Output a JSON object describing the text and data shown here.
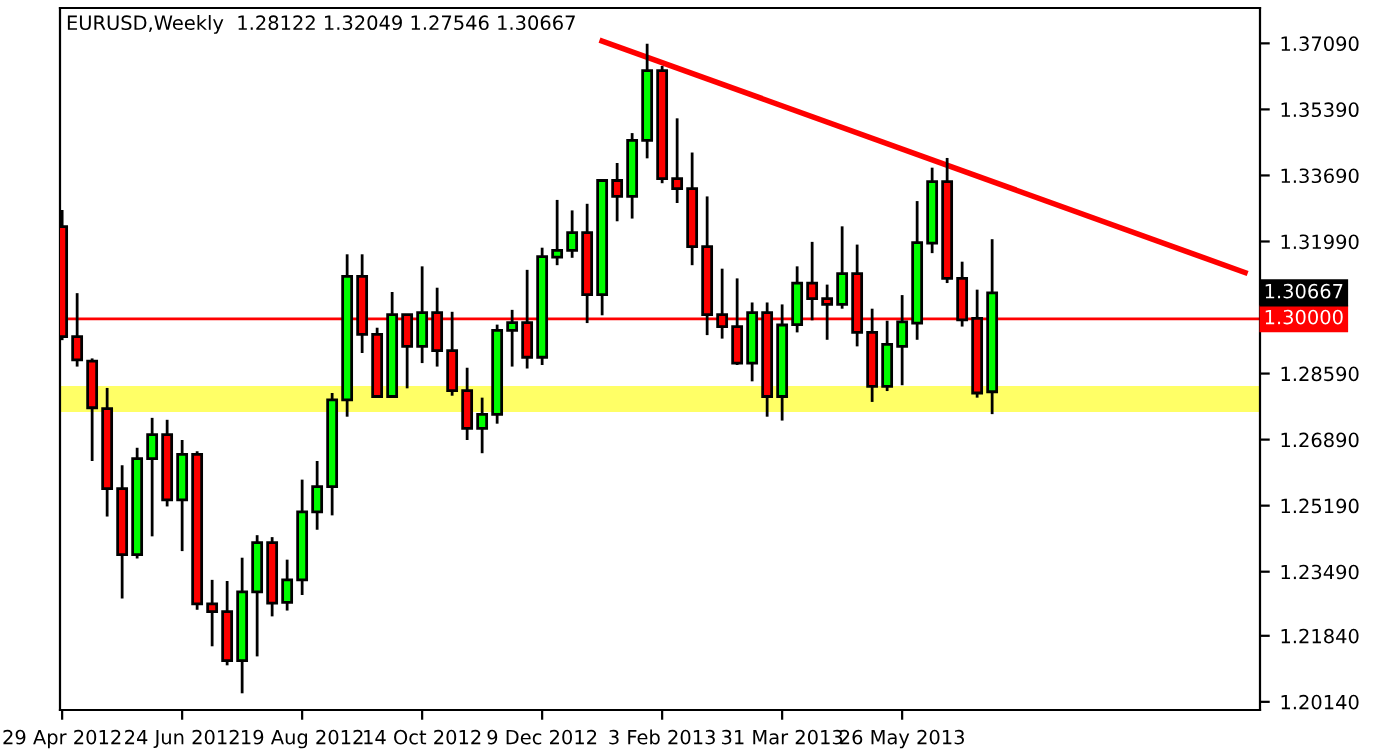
{
  "chart_data": {
    "type": "candlestick",
    "title": "EURUSD,Weekly  1.28122 1.32049 1.27546 1.30667",
    "x": [
      "2012-04-29",
      "2012-05-06",
      "2012-05-13",
      "2012-05-20",
      "2012-05-27",
      "2012-06-03",
      "2012-06-10",
      "2012-06-17",
      "2012-06-24",
      "2012-07-01",
      "2012-07-08",
      "2012-07-15",
      "2012-07-22",
      "2012-07-29",
      "2012-08-05",
      "2012-08-12",
      "2012-08-19",
      "2012-08-26",
      "2012-09-02",
      "2012-09-09",
      "2012-09-16",
      "2012-09-23",
      "2012-09-30",
      "2012-10-07",
      "2012-10-14",
      "2012-10-21",
      "2012-10-28",
      "2012-11-04",
      "2012-11-11",
      "2012-11-18",
      "2012-11-25",
      "2012-12-02",
      "2012-12-09",
      "2012-12-16",
      "2012-12-23",
      "2012-12-30",
      "2013-01-06",
      "2013-01-13",
      "2013-01-20",
      "2013-01-27",
      "2013-02-03",
      "2013-02-10",
      "2013-02-17",
      "2013-02-24",
      "2013-03-03",
      "2013-03-10",
      "2013-03-17",
      "2013-03-24",
      "2013-03-31",
      "2013-04-07",
      "2013-04-14",
      "2013-04-21",
      "2013-04-28",
      "2013-05-05",
      "2013-05-12",
      "2013-05-19",
      "2013-05-26",
      "2013-06-02",
      "2013-06-09",
      "2013-06-16",
      "2013-06-23",
      "2013-06-30",
      "2013-07-07"
    ],
    "ohlc": [
      [
        1.3237,
        1.328,
        1.2945,
        1.2954
      ],
      [
        1.2954,
        1.3066,
        1.2877,
        1.2894
      ],
      [
        1.2891,
        1.2898,
        1.2634,
        1.2771
      ],
      [
        1.2769,
        1.2822,
        1.2491,
        1.2563
      ],
      [
        1.2563,
        1.2623,
        1.228,
        1.2393
      ],
      [
        1.2393,
        1.2668,
        1.2383,
        1.264
      ],
      [
        1.264,
        1.2745,
        1.244,
        1.2702
      ],
      [
        1.2702,
        1.274,
        1.2517,
        1.2534
      ],
      [
        1.2534,
        1.2688,
        1.2402,
        1.2651
      ],
      [
        1.2651,
        1.2659,
        1.2251,
        1.2266
      ],
      [
        1.2266,
        1.2328,
        1.2157,
        1.2246
      ],
      [
        1.2246,
        1.2325,
        1.2108,
        1.212
      ],
      [
        1.212,
        1.2385,
        1.2036,
        1.2297
      ],
      [
        1.2297,
        1.2443,
        1.2131,
        1.2424
      ],
      [
        1.2424,
        1.2438,
        1.2234,
        1.2268
      ],
      [
        1.227,
        1.238,
        1.2249,
        1.2328
      ],
      [
        1.2328,
        1.2586,
        1.2289,
        1.2503
      ],
      [
        1.2503,
        1.2634,
        1.2457,
        1.2568
      ],
      [
        1.2568,
        1.2809,
        1.2494,
        1.2791
      ],
      [
        1.2791,
        1.3166,
        1.2748,
        1.3109
      ],
      [
        1.3109,
        1.3166,
        1.2912,
        1.296
      ],
      [
        1.296,
        1.2977,
        1.2797,
        1.28
      ],
      [
        1.28,
        1.3069,
        1.2797,
        1.3011
      ],
      [
        1.3011,
        1.3011,
        1.2821,
        1.2929
      ],
      [
        1.2929,
        1.3135,
        1.2886,
        1.3016
      ],
      [
        1.3016,
        1.308,
        1.2877,
        1.2918
      ],
      [
        1.2918,
        1.3018,
        1.2802,
        1.2815
      ],
      [
        1.2815,
        1.2874,
        1.2688,
        1.2718
      ],
      [
        1.2718,
        1.2797,
        1.2654,
        1.2754
      ],
      [
        1.2754,
        1.2985,
        1.273,
        1.297
      ],
      [
        1.297,
        1.3023,
        1.2877,
        1.299
      ],
      [
        1.299,
        1.3126,
        1.2872,
        1.2901
      ],
      [
        1.2901,
        1.3183,
        1.2881,
        1.316
      ],
      [
        1.3159,
        1.3306,
        1.3138,
        1.3176
      ],
      [
        1.3176,
        1.3279,
        1.3157,
        1.3222
      ],
      [
        1.3222,
        1.3296,
        1.2989,
        1.3062
      ],
      [
        1.3062,
        1.3359,
        1.3009,
        1.3356
      ],
      [
        1.3356,
        1.3401,
        1.3251,
        1.3315
      ],
      [
        1.3315,
        1.3478,
        1.3258,
        1.3459
      ],
      [
        1.3459,
        1.3708,
        1.3413,
        1.3639
      ],
      [
        1.3639,
        1.3651,
        1.3349,
        1.3361
      ],
      [
        1.3361,
        1.3516,
        1.3298,
        1.3335
      ],
      [
        1.3335,
        1.3428,
        1.3138,
        1.3186
      ],
      [
        1.3186,
        1.3315,
        1.2958,
        1.3011
      ],
      [
        1.3011,
        1.3129,
        1.2949,
        1.298
      ],
      [
        1.298,
        1.3104,
        1.2881,
        1.2886
      ],
      [
        1.2886,
        1.3042,
        1.2839,
        1.3016
      ],
      [
        1.3016,
        1.3042,
        1.2748,
        1.28
      ],
      [
        1.28,
        1.3037,
        1.2738,
        1.2984
      ],
      [
        1.2985,
        1.3135,
        1.2965,
        1.3092
      ],
      [
        1.3092,
        1.3198,
        1.2996,
        1.3052
      ],
      [
        1.3052,
        1.3088,
        1.2946,
        1.3037
      ],
      [
        1.3037,
        1.3238,
        1.3026,
        1.3116
      ],
      [
        1.3116,
        1.3191,
        1.2929,
        1.2965
      ],
      [
        1.2965,
        1.3026,
        1.2786,
        1.2826
      ],
      [
        1.2826,
        1.2995,
        1.2814,
        1.2934
      ],
      [
        1.2929,
        1.3061,
        1.2829,
        1.2992
      ],
      [
        1.2989,
        1.3303,
        1.2946,
        1.3196
      ],
      [
        1.3195,
        1.3389,
        1.3169,
        1.3353
      ],
      [
        1.3353,
        1.3414,
        1.3092,
        1.3104
      ],
      [
        1.3104,
        1.3147,
        1.298,
        1.2997
      ],
      [
        1.3001,
        1.3075,
        1.2797,
        1.2809
      ],
      [
        1.28122,
        1.32049,
        1.27546,
        1.30667
      ]
    ],
    "colors": [
      "#ff0000",
      "#ff0000",
      "#ff0000",
      "#ff0000",
      "#ff0000",
      "#00ff00",
      "#00ff00",
      "#ff0000",
      "#00ff00",
      "#ff0000",
      "#ff0000",
      "#ff0000",
      "#00ff00",
      "#00ff00",
      "#ff0000",
      "#00ff00",
      "#00ff00",
      "#00ff00",
      "#00ff00",
      "#00ff00",
      "#ff0000",
      "#ff0000",
      "#00ff00",
      "#ff0000",
      "#00ff00",
      "#ff0000",
      "#ff0000",
      "#ff0000",
      "#00ff00",
      "#00ff00",
      "#00ff00",
      "#ff0000",
      "#00ff00",
      "#00ff00",
      "#00ff00",
      "#ff0000",
      "#00ff00",
      "#ff0000",
      "#00ff00",
      "#00ff00",
      "#ff0000",
      "#ff0000",
      "#ff0000",
      "#ff0000",
      "#ff0000",
      "#ff0000",
      "#00ff00",
      "#ff0000",
      "#00ff00",
      "#00ff00",
      "#ff0000",
      "#ff0000",
      "#00ff00",
      "#ff0000",
      "#ff0000",
      "#00ff00",
      "#00ff00",
      "#00ff00",
      "#00ff00",
      "#ff0000",
      "#ff0000",
      "#ff0000",
      "#00ff00"
    ],
    "series": [
      {
        "type": "line",
        "color": "#ff0000",
        "x": [
          "2013-01-06",
          "2013-11-02"
        ],
        "values": [
          1.3715,
          1.3119
        ]
      }
    ],
    "ref_lines": [
      {
        "axis": "y",
        "value": 1.3,
        "label": "1.30000",
        "color": "#ff0000"
      }
    ],
    "bands": [
      {
        "axis": "y",
        "from": 1.276,
        "to": 1.2827,
        "color": "#ffff66"
      }
    ],
    "annotations": [
      "1.30667"
    ],
    "xlim": [
      "2012-04-28",
      "2013-11-09"
    ],
    "xticks": [
      {
        "value": "2012-04-29",
        "label": "29 Apr 2012"
      },
      {
        "value": "2012-06-24",
        "label": "24 Jun 2012"
      },
      {
        "value": "2012-08-19",
        "label": "19 Aug 2012"
      },
      {
        "value": "2012-10-14",
        "label": "14 Oct 2012"
      },
      {
        "value": "2012-12-09",
        "label": "9 Dec 2012"
      },
      {
        "value": "2013-02-03",
        "label": "3 Feb 2013"
      },
      {
        "value": "2013-03-31",
        "label": "31 Mar 2013"
      },
      {
        "value": "2013-05-26",
        "label": "26 May 2013"
      }
    ],
    "ylim": [
      1.1993,
      1.38
    ],
    "yticks": [
      {
        "value": 1.3709,
        "label": "1.37090"
      },
      {
        "value": 1.3539,
        "label": "1.35390"
      },
      {
        "value": 1.3369,
        "label": "1.33690"
      },
      {
        "value": 1.3199,
        "label": "1.31990"
      },
      {
        "value": 1.2859,
        "label": "1.28590"
      },
      {
        "value": 1.2689,
        "label": "1.26890"
      },
      {
        "value": 1.2519,
        "label": "1.25190"
      },
      {
        "value": 1.2349,
        "label": "1.23490"
      },
      {
        "value": 1.2184,
        "label": "1.21840"
      },
      {
        "value": 1.2014,
        "label": "1.20140"
      }
    ],
    "grid": false,
    "legend": false
  }
}
